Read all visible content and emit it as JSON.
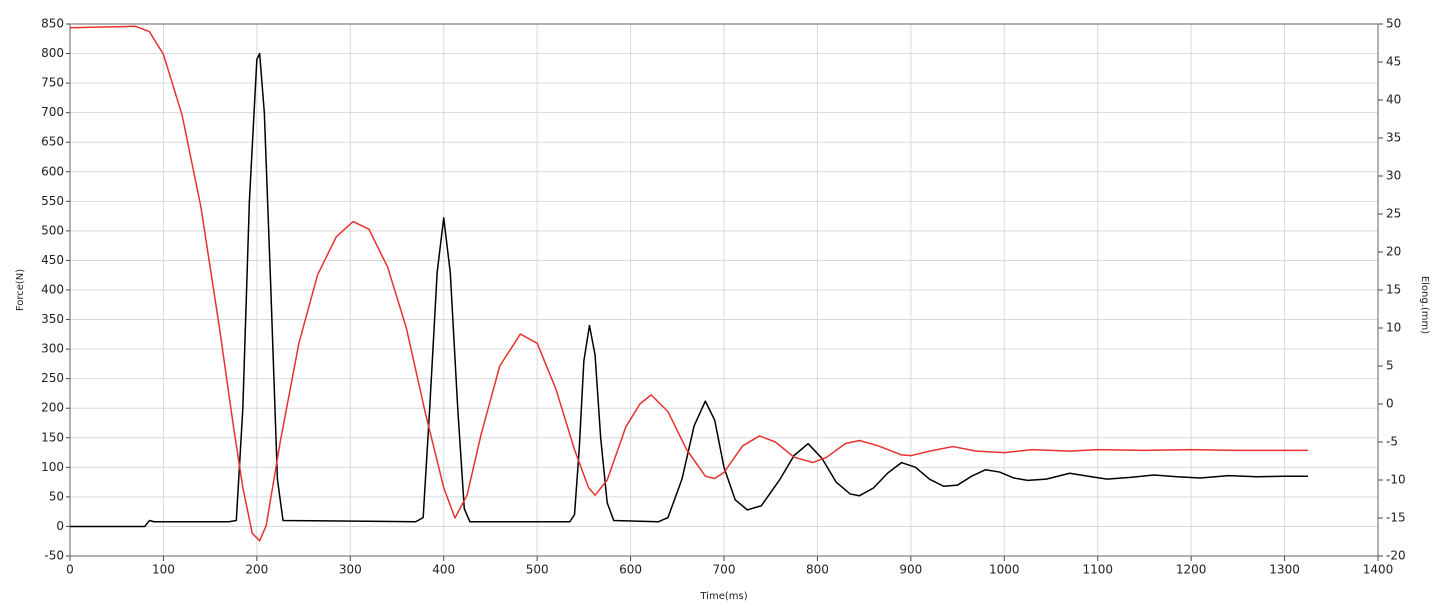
{
  "chart_data": {
    "type": "line",
    "xlabel": "Time(ms)",
    "ylabel": "Force(N)",
    "y2label": "Elong.(mm)",
    "xlim": [
      0,
      1400
    ],
    "xticks": [
      0,
      100,
      200,
      300,
      400,
      500,
      600,
      700,
      800,
      900,
      1000,
      1100,
      1200,
      1300,
      1400
    ],
    "ylim": [
      -50,
      850
    ],
    "yticks": [
      -50,
      0,
      50,
      100,
      150,
      200,
      250,
      300,
      350,
      400,
      450,
      500,
      550,
      600,
      650,
      700,
      750,
      800,
      850
    ],
    "y2lim": [
      -20,
      50
    ],
    "y2ticks": [
      -20,
      -15,
      -10,
      -5,
      0,
      5,
      10,
      15,
      20,
      25,
      30,
      35,
      40,
      45,
      50
    ],
    "grid": true,
    "series": [
      {
        "color": "#000000",
        "x": [
          0,
          80,
          85,
          90,
          170,
          178,
          185,
          192,
          200,
          203,
          208,
          215,
          222,
          228,
          370,
          378,
          385,
          393,
          400,
          407,
          415,
          422,
          428,
          535,
          540,
          545,
          550,
          556,
          562,
          568,
          575,
          582,
          630,
          640,
          655,
          668,
          680,
          690,
          700,
          712,
          725,
          740,
          760,
          775,
          790,
          805,
          820,
          835,
          845,
          860,
          875,
          890,
          905,
          920,
          935,
          950,
          965,
          980,
          995,
          1010,
          1025,
          1045,
          1070,
          1090,
          1110,
          1135,
          1160,
          1185,
          1210,
          1240,
          1270,
          1300,
          1325
        ],
        "values": [
          0,
          0,
          10,
          8,
          8,
          10,
          200,
          550,
          790,
          800,
          700,
          400,
          80,
          10,
          8,
          15,
          200,
          430,
          522,
          430,
          200,
          30,
          8,
          8,
          20,
          130,
          280,
          340,
          290,
          150,
          40,
          10,
          8,
          15,
          80,
          170,
          212,
          180,
          100,
          45,
          28,
          35,
          80,
          120,
          140,
          115,
          75,
          55,
          52,
          65,
          90,
          108,
          100,
          80,
          68,
          70,
          85,
          96,
          92,
          82,
          78,
          80,
          90,
          85,
          80,
          83,
          87,
          84,
          82,
          86,
          84,
          85,
          85
        ]
      },
      {
        "color": "#e8322e",
        "axis": "y2",
        "x": [
          0,
          70,
          85,
          100,
          120,
          140,
          160,
          175,
          185,
          195,
          203,
          210,
          225,
          245,
          265,
          285,
          303,
          320,
          340,
          360,
          380,
          400,
          412,
          425,
          440,
          460,
          482,
          500,
          520,
          540,
          555,
          562,
          575,
          595,
          610,
          622,
          640,
          660,
          680,
          690,
          700,
          720,
          738,
          755,
          775,
          795,
          810,
          830,
          845,
          865,
          890,
          900,
          920,
          945,
          970,
          1000,
          1030,
          1070,
          1100,
          1150,
          1200,
          1250,
          1325
        ],
        "values": [
          49.5,
          49.7,
          49,
          46,
          38,
          26,
          10,
          -3,
          -11,
          -17,
          -18,
          -16,
          -5,
          8,
          17,
          22,
          24,
          23,
          18,
          10,
          -1,
          -11,
          -15,
          -12,
          -4,
          5,
          9.2,
          8,
          2,
          -6,
          -11,
          -12,
          -10,
          -3,
          0,
          1.2,
          -1,
          -6,
          -9.5,
          -9.8,
          -9,
          -5.5,
          -4.2,
          -5,
          -7,
          -7.7,
          -7,
          -5.2,
          -4.8,
          -5.5,
          -6.7,
          -6.8,
          -6.2,
          -5.6,
          -6.2,
          -6.4,
          -6,
          -6.2,
          -6,
          -6.1,
          -6,
          -6.1,
          -6.1
        ]
      }
    ]
  }
}
